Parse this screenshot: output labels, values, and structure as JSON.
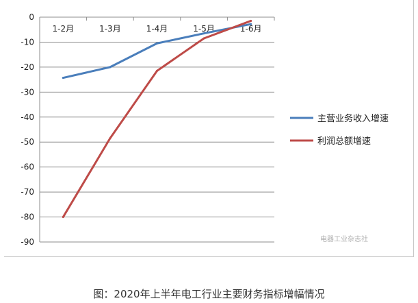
{
  "chart_data": {
    "type": "line",
    "categories": [
      "1-2月",
      "1-3月",
      "1-4月",
      "1-5月",
      "1-6月"
    ],
    "series": [
      {
        "name": "主营业务收入增速",
        "color": "#4a7ebb",
        "values": [
          -24.3,
          -20,
          -10.5,
          -6.5,
          -2.8
        ]
      },
      {
        "name": "利润总额增速",
        "color": "#be4b48",
        "values": [
          -80,
          -48.5,
          -21.5,
          -8.5,
          -1.5
        ]
      }
    ],
    "ylim": [
      -90,
      0
    ],
    "yticks": [
      0,
      -10,
      -20,
      -30,
      -40,
      -50,
      -60,
      -70,
      -80,
      -90
    ],
    "grid": true,
    "legend_position": "right",
    "xaxis_position": "top"
  },
  "legend_display": [
    "主营业务收入增速",
    "利润总额增速"
  ],
  "watermark": "电器工业杂志社",
  "caption": "图：2020年上半年电工行业主要财务指标增幅情况"
}
